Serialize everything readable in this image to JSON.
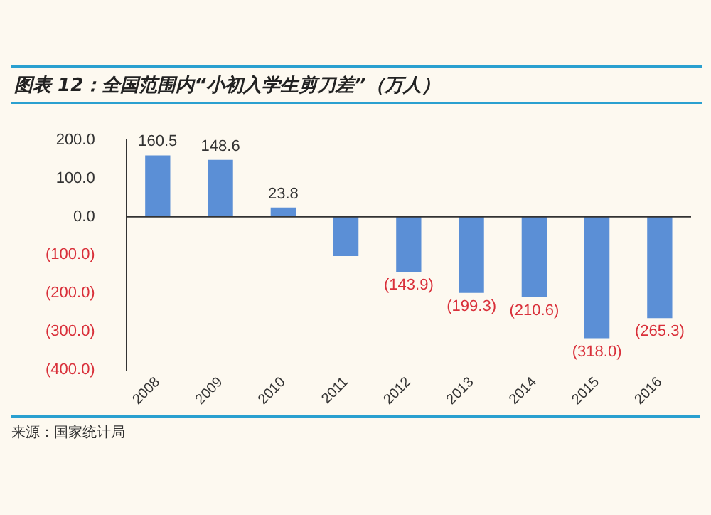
{
  "chart_data": {
    "type": "bar",
    "title": "图表 12：全国范围内“小初入学生剪刀差”（万人）",
    "categories": [
      "2008",
      "2009",
      "2010",
      "2011",
      "2012",
      "2013",
      "2014",
      "2015",
      "2016"
    ],
    "values": [
      160.5,
      148.6,
      23.8,
      -103,
      -143.9,
      -199.3,
      -210.6,
      -318.0,
      -265.3
    ],
    "value_labels": [
      "160.5",
      "148.6",
      "23.8",
      null,
      "(143.9)",
      "(199.3)",
      "(210.6)",
      "(318.0)",
      "(265.3)"
    ],
    "color": "#5b8fd6",
    "ylim": [
      -400,
      200
    ],
    "yticks": [
      {
        "value": 200,
        "label": "200.0"
      },
      {
        "value": 100,
        "label": "100.0"
      },
      {
        "value": 0,
        "label": "0.0"
      },
      {
        "value": -100,
        "label": "(100.0)"
      },
      {
        "value": -200,
        "label": "(200.0)"
      },
      {
        "value": -300,
        "label": "(300.0)"
      },
      {
        "value": -400,
        "label": "(400.0)"
      }
    ],
    "grid": false,
    "legend": false,
    "ref_lines": [
      {
        "axis": "y",
        "value": 0,
        "color": "#333333"
      }
    ],
    "annotations": [
      "来源：国家统计局"
    ]
  }
}
